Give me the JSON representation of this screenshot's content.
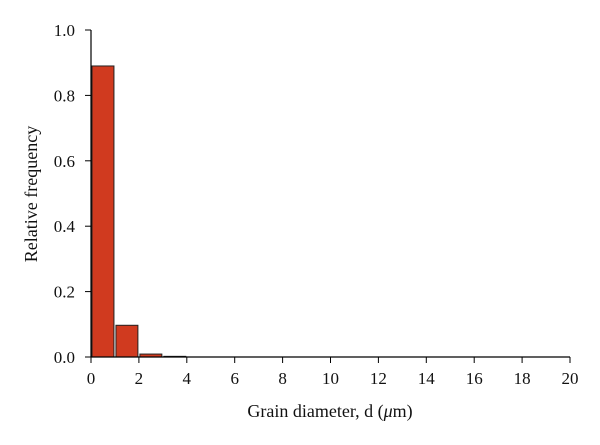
{
  "chart_data": {
    "type": "bar",
    "title": "",
    "xlabel_main": "Grain diameter, d (",
    "xlabel_unit_mu": "μ",
    "xlabel_unit_rest": "m)",
    "ylabel": "Relative frequency",
    "xlim": [
      0,
      20
    ],
    "ylim": [
      0,
      1.0
    ],
    "x_ticks": [
      "0",
      "2",
      "4",
      "6",
      "8",
      "10",
      "12",
      "14",
      "16",
      "18",
      "20"
    ],
    "y_ticks": [
      "0.0",
      "0.2",
      "0.4",
      "0.6",
      "0.8",
      "1.0"
    ],
    "bins": [
      {
        "x0": 0,
        "x1": 1,
        "value": 0.89
      },
      {
        "x0": 1,
        "x1": 2,
        "value": 0.097
      },
      {
        "x0": 2,
        "x1": 3,
        "value": 0.009
      },
      {
        "x0": 3,
        "x1": 4,
        "value": 0.002
      }
    ],
    "grid": false,
    "bar_color": "#d03a1f",
    "bar_edge_color": "#222222"
  }
}
